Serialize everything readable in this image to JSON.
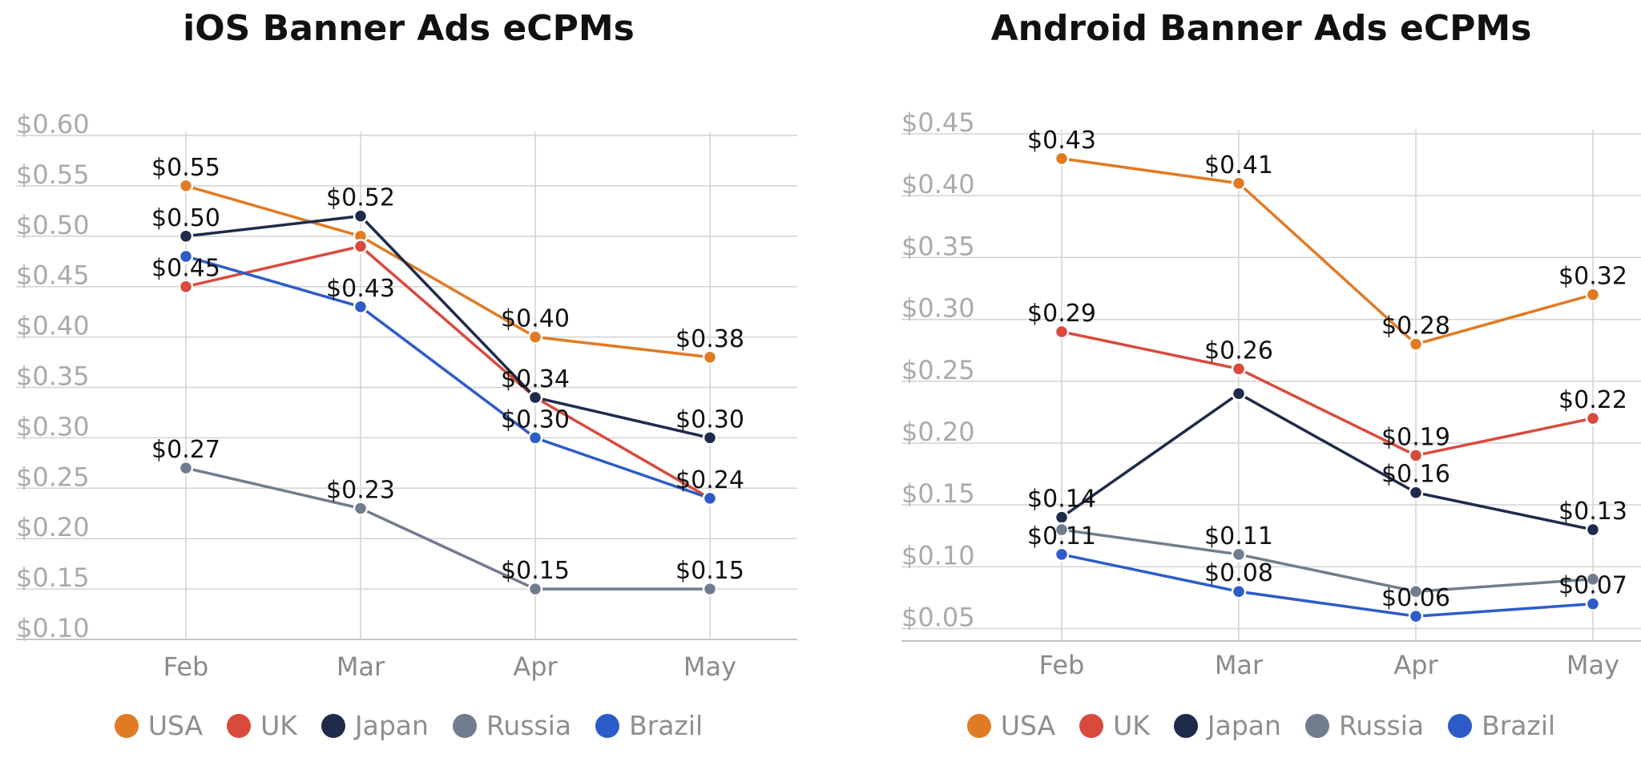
{
  "chart_data": [
    {
      "type": "line",
      "title": "iOS Banner Ads eCPMs",
      "categories": [
        "Feb",
        "Mar",
        "Apr",
        "May"
      ],
      "y_ticks": [
        "$0.60",
        "$0.55",
        "$0.50",
        "$0.45",
        "$0.40",
        "$0.35",
        "$0.30",
        "$0.25",
        "$0.20",
        "$0.15",
        "$0.10"
      ],
      "ylim": [
        0.1,
        0.6
      ],
      "grid": true,
      "legend_position": "bottom",
      "series": [
        {
          "name": "USA",
          "color": "#e07b24",
          "values": [
            0.55,
            0.5,
            0.4,
            0.38
          ],
          "labels": [
            "$0.55",
            "",
            "$0.40",
            "$0.38"
          ]
        },
        {
          "name": "UK",
          "color": "#d94a3d",
          "values": [
            0.45,
            0.49,
            0.34,
            0.24
          ],
          "labels": [
            "$0.45",
            "",
            "",
            ""
          ]
        },
        {
          "name": "Japan",
          "color": "#1e2b4a",
          "values": [
            0.5,
            0.52,
            0.34,
            0.3
          ],
          "labels": [
            "$0.50",
            "$0.52",
            "$0.34",
            "$0.30"
          ]
        },
        {
          "name": "Russia",
          "color": "#717d8e",
          "values": [
            0.27,
            0.23,
            0.15,
            0.15
          ],
          "labels": [
            "$0.27",
            "$0.23",
            "$0.15",
            "$0.15"
          ]
        },
        {
          "name": "Brazil",
          "color": "#2d5cc8",
          "values": [
            0.48,
            0.43,
            0.3,
            0.24
          ],
          "labels": [
            "",
            "$0.43",
            "$0.30",
            "$0.24"
          ]
        }
      ]
    },
    {
      "type": "line",
      "title": "Android Banner Ads eCPMs",
      "categories": [
        "Feb",
        "Mar",
        "Apr",
        "May"
      ],
      "y_ticks": [
        "$0.45",
        "$0.40",
        "$0.35",
        "$0.30",
        "$0.25",
        "$0.20",
        "$0.15",
        "$0.10",
        "$0.05"
      ],
      "ylim": [
        0.04,
        0.45
      ],
      "grid": true,
      "legend_position": "bottom",
      "series": [
        {
          "name": "USA",
          "color": "#e07b24",
          "values": [
            0.43,
            0.41,
            0.28,
            0.32
          ],
          "labels": [
            "$0.43",
            "$0.41",
            "$0.28",
            "$0.32"
          ]
        },
        {
          "name": "UK",
          "color": "#d94a3d",
          "values": [
            0.29,
            0.26,
            0.19,
            0.22
          ],
          "labels": [
            "$0.29",
            "$0.26",
            "$0.19",
            "$0.22"
          ]
        },
        {
          "name": "Japan",
          "color": "#1e2b4a",
          "values": [
            0.14,
            0.24,
            0.16,
            0.13
          ],
          "labels": [
            "$0.14",
            "",
            "$0.16",
            "$0.13"
          ]
        },
        {
          "name": "Russia",
          "color": "#717d8e",
          "values": [
            0.13,
            0.11,
            0.08,
            0.09
          ],
          "labels": [
            "",
            "$0.11",
            "",
            ""
          ]
        },
        {
          "name": "Brazil",
          "color": "#2d5cc8",
          "values": [
            0.11,
            0.08,
            0.06,
            0.07
          ],
          "labels": [
            "$0.11",
            "$0.08",
            "$0.06",
            "$0.07"
          ]
        }
      ]
    }
  ]
}
